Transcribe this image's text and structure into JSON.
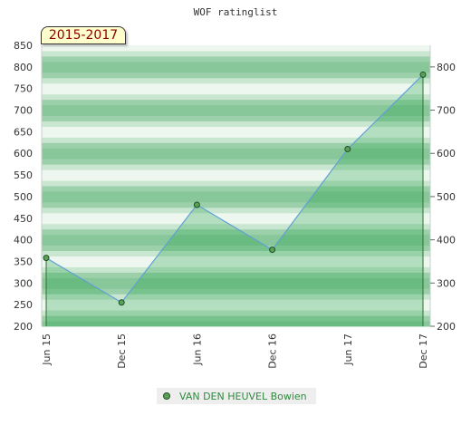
{
  "chart_data": {
    "type": "area",
    "title": "WOF ratinglist",
    "period_label": "2015-2017",
    "categories": [
      "Jun 15",
      "Dec 15",
      "Jun 16",
      "Dec 16",
      "Jun 17",
      "Dec 17"
    ],
    "series": [
      {
        "name": "VAN DEN HEUVEL Bowien",
        "values": [
          358,
          255,
          481,
          377,
          610,
          782
        ]
      }
    ],
    "y_left": {
      "ticks": [
        200,
        250,
        300,
        350,
        400,
        450,
        500,
        550,
        600,
        650,
        700,
        750,
        800,
        850
      ],
      "ylim": [
        200,
        850
      ]
    },
    "y_right": {
      "ticks": [
        200,
        300,
        400,
        500,
        600,
        700,
        800
      ]
    },
    "legend_position": "bottom",
    "colors": {
      "band_dark": "#88c79a",
      "band_light": "#ecf6ee",
      "fill": "#1e9e46",
      "line": "#5fa0d6",
      "marker": "#5aa05a",
      "marker_stroke": "#1f4f1f"
    }
  }
}
